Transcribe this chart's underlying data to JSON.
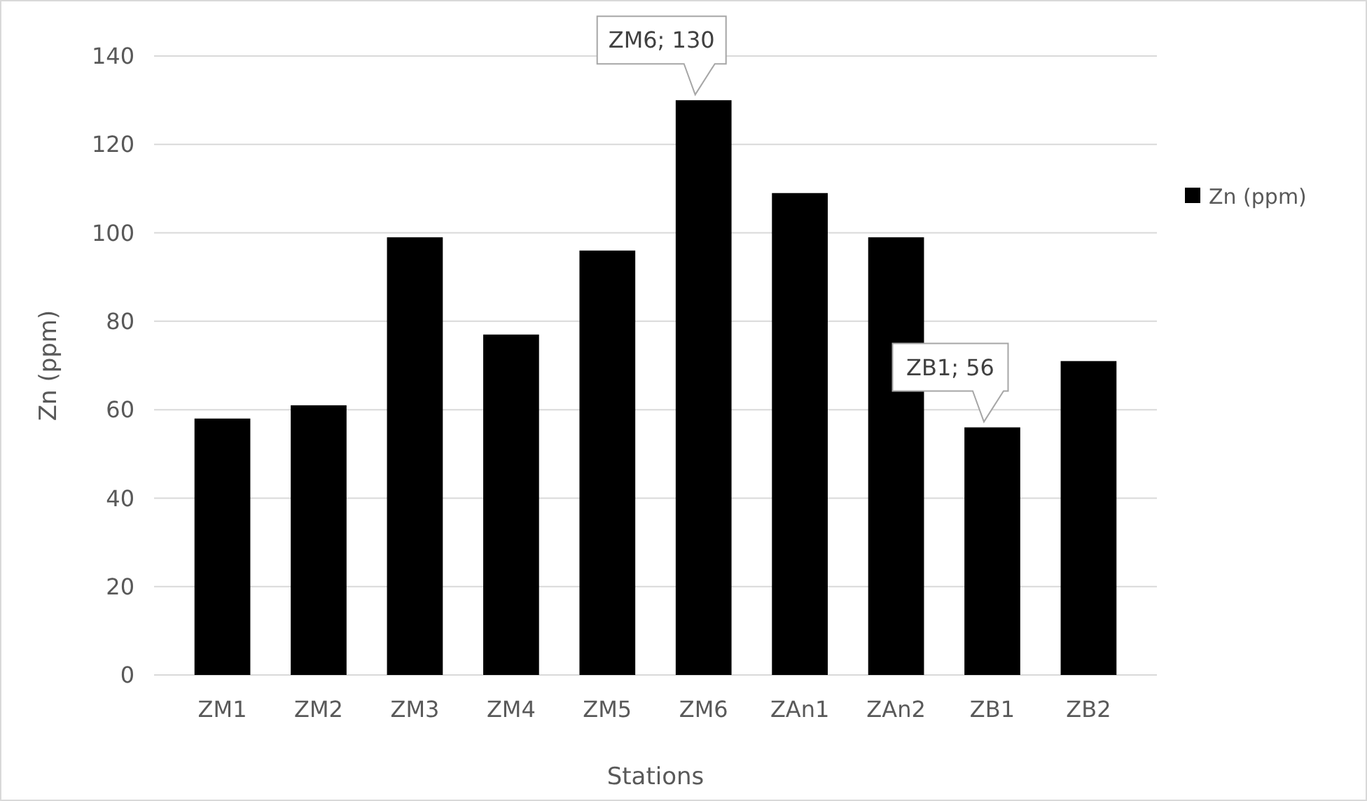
{
  "chart_data": {
    "type": "bar",
    "xlabel": "Stations",
    "ylabel": "Zn (ppm)",
    "categories": [
      "ZM1",
      "ZM2",
      "ZM3",
      "ZM4",
      "ZM5",
      "ZM6",
      "ZAn1",
      "ZAn2",
      "ZB1",
      "ZB2"
    ],
    "series": [
      {
        "name": "Zn (ppm)",
        "color": "#000000",
        "values": [
          58,
          61,
          99,
          77,
          96,
          130,
          109,
          99,
          56,
          71
        ],
        "value_labels": [
          null,
          null,
          null,
          null,
          null,
          "ZM6; 130",
          null,
          null,
          "ZB1; 56",
          null
        ]
      }
    ],
    "ylim": [
      0,
      140
    ],
    "yticks": [
      0,
      20,
      40,
      60,
      80,
      100,
      120,
      140
    ],
    "grid": "y",
    "legend": "right"
  }
}
